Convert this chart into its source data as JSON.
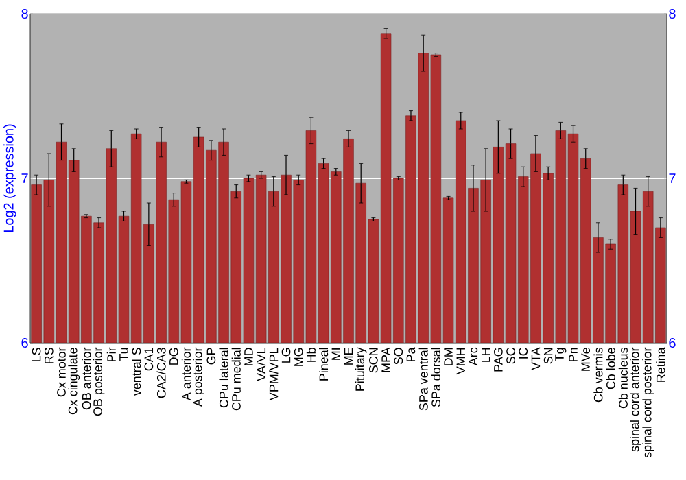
{
  "chart_data": {
    "type": "bar",
    "ylabel": "Log2 (expression)",
    "categories": [
      "LS",
      "RS",
      "Cx motor",
      "Cx cingulate",
      "OB anterior",
      "OB posterior",
      "Pir",
      "Tu",
      "ventral S",
      "CA1",
      "CA2/CA3",
      "DG",
      "A anterior",
      "A posterior",
      "GP",
      "CPu lateral",
      "CPu medial",
      "MD",
      "VA/VL",
      "VPM/VPL",
      "LG",
      "MG",
      "Hb",
      "Pineal",
      "MI",
      "ME",
      "Pituitary",
      "SCN",
      "MPA",
      "SO",
      "Pa",
      "SPa ventral",
      "SPa dorsal",
      "DM",
      "VMH",
      "Arc",
      "LH",
      "PAG",
      "SC",
      "IC",
      "VTA",
      "SN",
      "Tg",
      "Pn",
      "MVe",
      "Cb vermis",
      "Cb lobe",
      "Cb nucleus",
      "spinal cord anterior",
      "spinal cord posterior",
      "Retina"
    ],
    "values": [
      6.96,
      6.99,
      7.22,
      7.11,
      6.77,
      6.73,
      7.18,
      6.77,
      7.27,
      6.72,
      7.22,
      6.87,
      6.98,
      7.25,
      7.17,
      7.22,
      6.92,
      7.0,
      7.02,
      6.92,
      7.02,
      6.99,
      7.29,
      7.09,
      7.04,
      7.24,
      6.97,
      6.75,
      7.88,
      7.0,
      7.38,
      7.76,
      7.75,
      6.88,
      7.35,
      6.94,
      6.99,
      7.19,
      7.21,
      7.01,
      7.15,
      7.03,
      7.29,
      7.27,
      7.12,
      6.64,
      6.6,
      6.96,
      6.8,
      6.92,
      6.7
    ],
    "errors": [
      0.06,
      0.16,
      0.11,
      0.07,
      0.01,
      0.03,
      0.11,
      0.03,
      0.03,
      0.13,
      0.09,
      0.04,
      0.01,
      0.06,
      0.06,
      0.08,
      0.04,
      0.02,
      0.02,
      0.09,
      0.12,
      0.03,
      0.08,
      0.03,
      0.02,
      0.05,
      0.12,
      0.01,
      0.03,
      0.01,
      0.03,
      0.11,
      0.01,
      0.01,
      0.05,
      0.14,
      0.19,
      0.16,
      0.09,
      0.06,
      0.11,
      0.04,
      0.05,
      0.05,
      0.06,
      0.09,
      0.03,
      0.06,
      0.14,
      0.09,
      0.06
    ],
    "color": "#b03030",
    "ylim": [
      6,
      8
    ],
    "yticks": [
      6,
      7,
      8
    ],
    "y2lim": [
      6,
      8
    ],
    "y2ticks": [
      6,
      7,
      8
    ],
    "grid": "y"
  }
}
